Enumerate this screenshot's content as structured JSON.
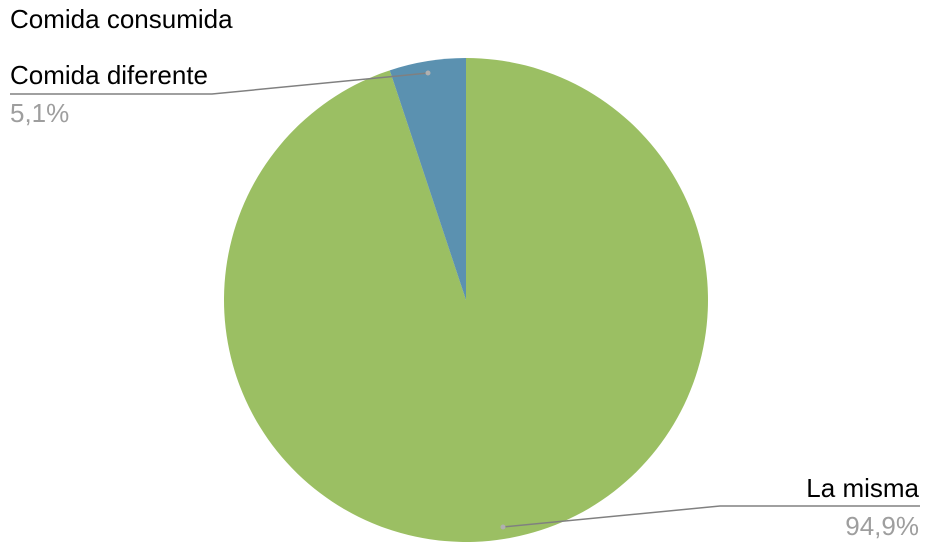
{
  "chart_data": {
    "type": "pie",
    "title": "Comida consumida",
    "slices": [
      {
        "label": "La misma",
        "value": 94.9,
        "value_label": "94,9%",
        "color": "#9bbf63"
      },
      {
        "label": "Comida diferente",
        "value": 5.1,
        "value_label": "5,1%",
        "color": "#5b91b0"
      }
    ],
    "legend": "none",
    "leader_line_color": "#808080"
  }
}
